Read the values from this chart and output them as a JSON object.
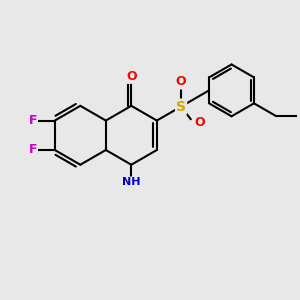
{
  "bg_color": "#e8e8e8",
  "bond_color": "#000000",
  "bond_width": 1.5,
  "atom_colors": {
    "F": "#cc00cc",
    "N": "#0000cc",
    "O": "#ff0000",
    "S": "#ccaa00",
    "C": "#000000",
    "H": "#000000"
  },
  "figsize": [
    3.0,
    3.0
  ],
  "dpi": 100
}
